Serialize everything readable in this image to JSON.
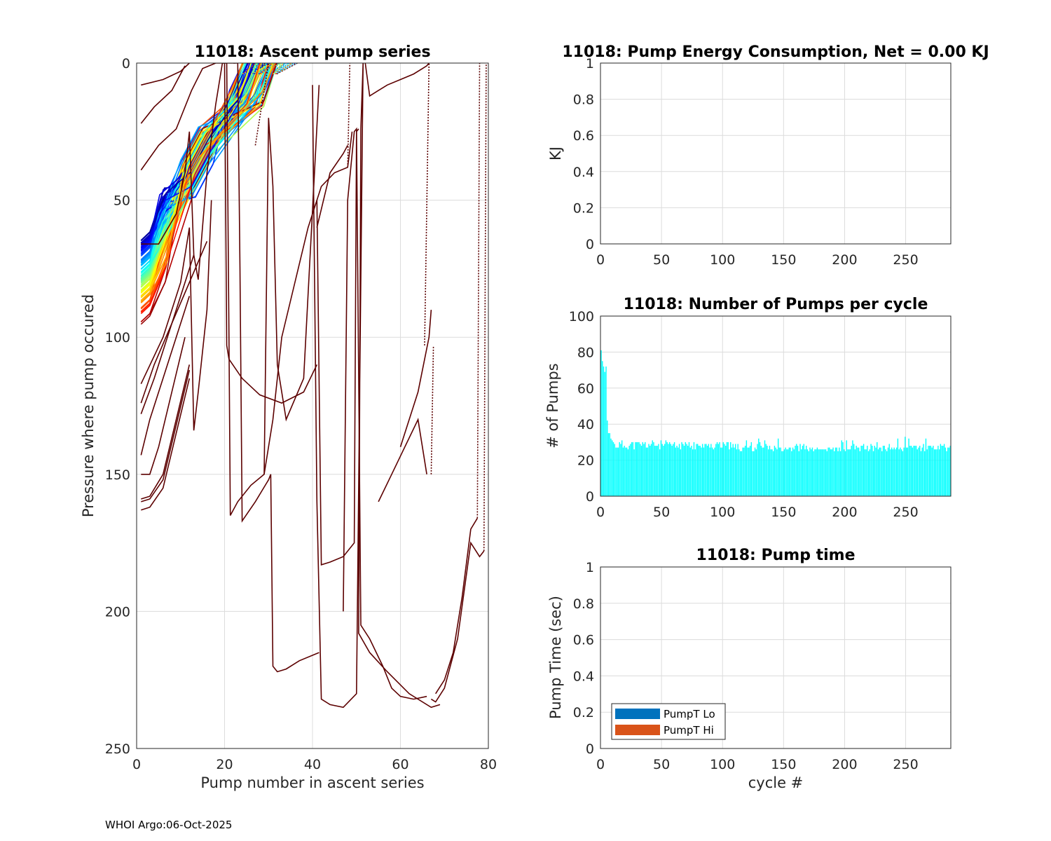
{
  "footer": "WHOI Argo:06-Oct-2025",
  "chart_data": [
    {
      "id": "ascent",
      "type": "line",
      "title": "11018: Ascent pump series",
      "xlabel": "Pump number in ascent series",
      "ylabel": "Pressure where pump occured",
      "xlim": [
        0,
        80
      ],
      "ylim": [
        0,
        250
      ],
      "y_reversed": true,
      "xticks": [
        "0",
        "20",
        "40",
        "60",
        "80"
      ],
      "yticks": [
        "0",
        "50",
        "100",
        "150",
        "200",
        "250"
      ],
      "grid": true,
      "series_colormap": [
        "#00008f",
        "#0000ff",
        "#0080ff",
        "#00ffff",
        "#80ff80",
        "#ffff00",
        "#ff8000",
        "#ff0000",
        "#800000"
      ],
      "bundle": {
        "count": 90,
        "start_pressure_range": [
          64,
          96
        ],
        "start_pump": 1,
        "end_pump_range": [
          24,
          32
        ],
        "mid_pump_range": [
          10,
          14
        ],
        "mid_pressure": 30
      },
      "outlier_color": "#5c0000",
      "outliers": [
        {
          "x": [
            1,
            5,
            9,
            11,
            12,
            13,
            14,
            16,
            18,
            19.5,
            22,
            22.5
          ],
          "y": [
            66,
            66,
            55,
            40,
            25,
            70,
            79,
            40,
            15,
            0,
            0,
            0
          ]
        },
        {
          "x": [
            1,
            6,
            10,
            12
          ],
          "y": [
            8,
            6,
            3,
            0
          ]
        },
        {
          "x": [
            1,
            4,
            8,
            11
          ],
          "y": [
            22,
            16,
            10,
            1
          ]
        },
        {
          "x": [
            1,
            5,
            9,
            12.5,
            15,
            18,
            19
          ],
          "y": [
            39,
            30,
            24,
            10,
            2,
            0,
            0
          ]
        },
        {
          "x": [
            1,
            6,
            10,
            12,
            13,
            14,
            16,
            17
          ],
          "y": [
            117,
            100,
            80,
            60,
            134,
            120,
            90,
            50
          ]
        },
        {
          "x": [
            1,
            4,
            8,
            12,
            16
          ],
          "y": [
            124,
            110,
            95,
            80,
            65
          ]
        },
        {
          "x": [
            1,
            4,
            7,
            10,
            13
          ],
          "y": [
            128,
            115,
            100,
            85,
            70
          ]
        },
        {
          "x": [
            1,
            3,
            6,
            9,
            12
          ],
          "y": [
            143,
            130,
            115,
            100,
            85
          ]
        },
        {
          "x": [
            1,
            3,
            5,
            8,
            11
          ],
          "y": [
            150,
            150,
            140,
            120,
            100
          ]
        },
        {
          "x": [
            1,
            3,
            6,
            9,
            12
          ],
          "y": [
            159,
            158,
            150,
            130,
            110
          ]
        },
        {
          "x": [
            1,
            3,
            6,
            9,
            12
          ],
          "y": [
            160,
            159,
            152,
            132,
            112
          ]
        },
        {
          "x": [
            1,
            3,
            6,
            9,
            12
          ],
          "y": [
            163,
            162,
            155,
            135,
            115
          ]
        },
        {
          "x": [
            19,
            20,
            20.5,
            21,
            24,
            28,
            33,
            38,
            41
          ],
          "y": [
            0,
            0,
            103,
            108,
            115,
            121,
            124,
            120,
            110
          ]
        },
        {
          "x": [
            19.5,
            20.5,
            21,
            21.3,
            23,
            26,
            29,
            30,
            31,
            32,
            34,
            38,
            41.5
          ],
          "y": [
            0,
            0,
            100,
            165,
            160,
            154,
            150,
            20,
            45,
            110,
            130,
            115,
            8
          ]
        },
        {
          "x": [
            22,
            23,
            23.5,
            24,
            27,
            30,
            30.5,
            31,
            32,
            34,
            37,
            41.5
          ],
          "y": [
            0,
            0,
            75,
            167,
            160,
            152,
            150,
            220,
            222,
            221,
            218,
            215
          ]
        },
        {
          "x": [
            29,
            31,
            33,
            36,
            39,
            42,
            45,
            48,
            49
          ],
          "y": [
            150,
            130,
            100,
            80,
            60,
            45,
            40,
            38,
            25
          ]
        },
        {
          "x": [
            40,
            41,
            42,
            44,
            47,
            50,
            51.5,
            51,
            50.5,
            53,
            57,
            62,
            67,
            69
          ],
          "y": [
            8,
            160,
            232,
            234,
            235,
            230,
            0,
            24,
            208,
            215,
            222,
            230,
            235,
            234
          ]
        },
        {
          "x": [
            41,
            42,
            44,
            47,
            49.5,
            50,
            50.5
          ],
          "y": [
            50,
            183,
            182,
            180,
            175,
            25,
            24
          ]
        },
        {
          "x": [
            41,
            44,
            47,
            48
          ],
          "y": [
            60,
            40,
            33,
            30
          ]
        },
        {
          "x": [
            47,
            48,
            49.5,
            50,
            51,
            53,
            56,
            58,
            60,
            63,
            66
          ],
          "y": [
            200,
            50,
            25,
            24,
            205,
            210,
            220,
            228,
            231,
            232,
            231
          ]
        },
        {
          "x": [
            52,
            53,
            55,
            57,
            60,
            63,
            65,
            66,
            66.5
          ],
          "y": [
            0,
            12,
            10,
            8,
            6,
            4,
            2,
            1,
            0
          ]
        },
        {
          "x": [
            55,
            58,
            61,
            64,
            66
          ],
          "y": [
            160,
            150,
            140,
            130,
            150
          ]
        },
        {
          "x": [
            60,
            64,
            66.5,
            67
          ],
          "y": [
            140,
            120,
            100,
            90
          ]
        },
        {
          "x": [
            67,
            68,
            70,
            73,
            76,
            78,
            79
          ],
          "y": [
            232,
            233,
            228,
            210,
            175,
            180,
            178
          ]
        },
        {
          "x": [
            68,
            70,
            72,
            74,
            76,
            77.5
          ],
          "y": [
            230,
            225,
            215,
            195,
            170,
            166
          ]
        }
      ],
      "dotted_color": "#5c0000",
      "dotted": [
        {
          "x": [
            48,
            48.5
          ],
          "y": [
            38,
            0
          ]
        },
        {
          "x": [
            65.5,
            66.5
          ],
          "y": [
            103,
            0
          ]
        },
        {
          "x": [
            67,
            67.5
          ],
          "y": [
            150,
            103
          ]
        },
        {
          "x": [
            77.5,
            78
          ],
          "y": [
            166,
            0
          ]
        },
        {
          "x": [
            79,
            79.5
          ],
          "y": [
            178,
            0
          ]
        },
        {
          "x": [
            27,
            30
          ],
          "y": [
            30,
            0
          ]
        }
      ]
    },
    {
      "id": "energy",
      "type": "bar",
      "title": "11018: Pump Energy Consumption,  Net =   0.00 KJ",
      "xlabel": "",
      "ylabel": "KJ",
      "xlim": [
        0,
        287
      ],
      "ylim": [
        0,
        1
      ],
      "xticks": [
        "0",
        "50",
        "100",
        "150",
        "200",
        "250"
      ],
      "yticks": [
        "0",
        "0.2",
        "0.4",
        "0.6",
        "0.8",
        "1"
      ],
      "grid": true,
      "values": []
    },
    {
      "id": "pumps",
      "type": "bar",
      "title": "11018: Number of Pumps per cycle",
      "xlabel": "",
      "ylabel": "# of Pumps",
      "xlim": [
        0,
        287
      ],
      "ylim": [
        0,
        100
      ],
      "xticks": [
        "0",
        "50",
        "100",
        "150",
        "200",
        "250"
      ],
      "yticks": [
        "0",
        "20",
        "40",
        "60",
        "80",
        "100"
      ],
      "grid": true,
      "color": "#00ffff",
      "first_values": [
        81,
        75,
        72,
        69,
        72,
        42,
        35,
        35,
        32,
        31,
        30
      ],
      "segments": [
        {
          "from": 11,
          "to": 60,
          "base": 28.5,
          "spread": 2.5
        },
        {
          "from": 60,
          "to": 110,
          "base": 28,
          "spread": 2
        },
        {
          "from": 110,
          "to": 170,
          "base": 27,
          "spread": 2
        },
        {
          "from": 170,
          "to": 205,
          "base": 26,
          "spread": 1
        },
        {
          "from": 205,
          "to": 287,
          "base": 27,
          "spread": 2
        }
      ]
    },
    {
      "id": "pumptime",
      "type": "bar",
      "title": "11018: Pump time",
      "xlabel": "cycle #",
      "ylabel": "Pump Time (sec)",
      "xlim": [
        0,
        287
      ],
      "ylim": [
        0,
        1
      ],
      "xticks": [
        "0",
        "50",
        "100",
        "150",
        "200",
        "250"
      ],
      "yticks": [
        "0",
        "0.2",
        "0.4",
        "0.6",
        "0.8",
        "1"
      ],
      "grid": true,
      "legend_position": "bottom-left",
      "legend": [
        {
          "label": "PumpT Lo",
          "color": "#0072bd"
        },
        {
          "label": "PumpT Hi",
          "color": "#d95319"
        }
      ],
      "values": []
    }
  ]
}
